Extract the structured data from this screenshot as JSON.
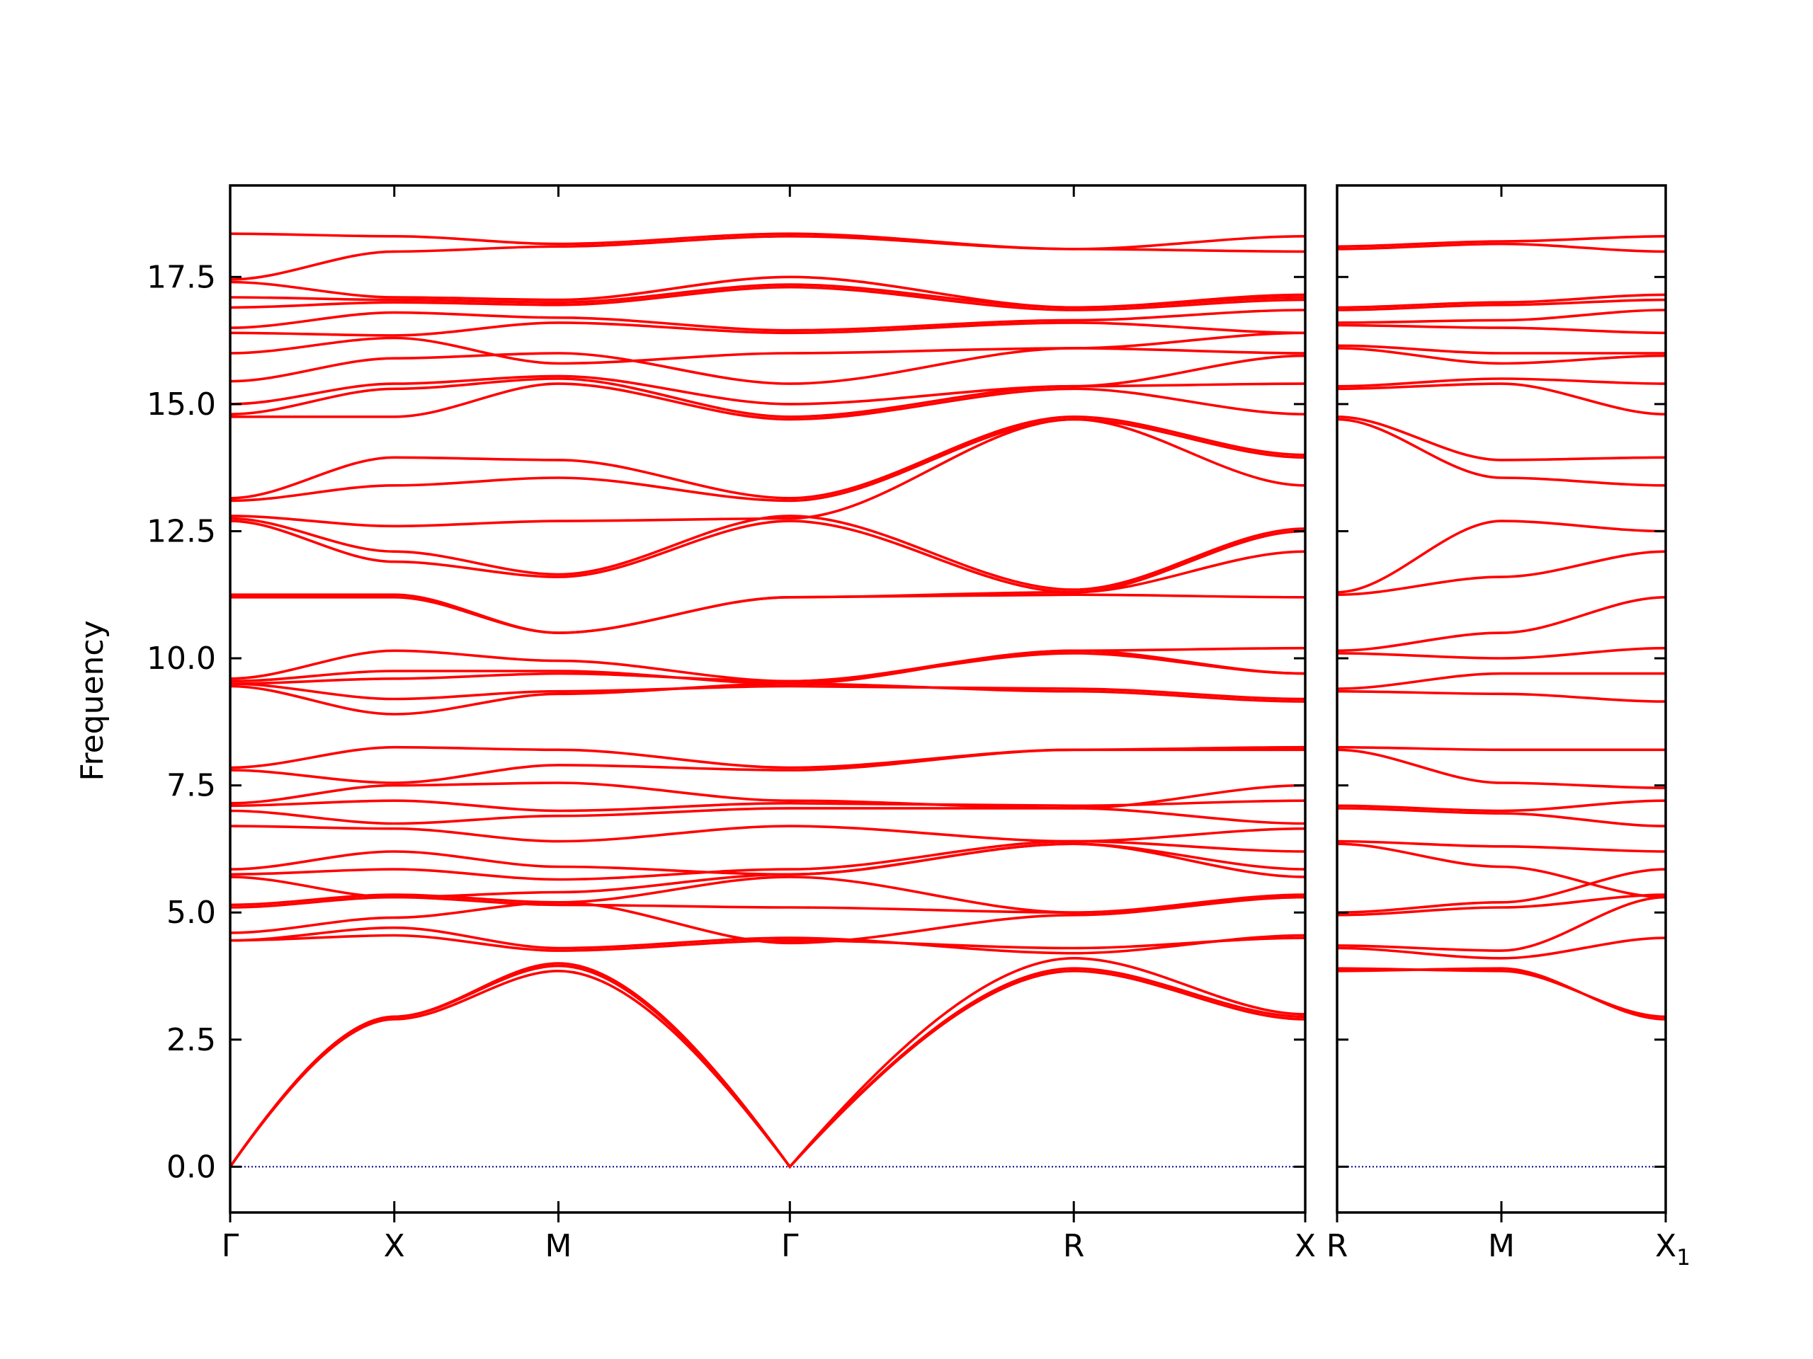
{
  "chart_data": {
    "type": "line",
    "ylabel": "Frequency",
    "ylim": [
      -0.9,
      19.3
    ],
    "yticks": [
      "0.0",
      "2.5",
      "5.0",
      "7.5",
      "10.0",
      "12.5",
      "15.0",
      "17.5"
    ],
    "band_color": "#ff0000",
    "zero_line_color": "#00008b",
    "panels": [
      {
        "name": "main",
        "path_labels": [
          "Γ",
          "X",
          "M",
          "Γ",
          "R",
          "X"
        ],
        "segment_lengths": [
          1.0,
          1.0,
          1.41,
          1.73,
          1.41
        ],
        "bands": [
          {
            "nodes": [
              0,
              2.95,
              3.95,
              0,
              3.85,
              2.9
            ],
            "shape": "acoustic"
          },
          {
            "nodes": [
              0,
              2.9,
              3.85,
              0,
              3.9,
              2.95
            ],
            "shape": "acoustic"
          },
          {
            "nodes": [
              0,
              2.95,
              4.0,
              0,
              4.1,
              3.0
            ],
            "shape": "acoustic"
          },
          {
            "nodes": [
              4.45,
              4.55,
              4.25,
              4.45,
              4.3,
              4.5
            ]
          },
          {
            "nodes": [
              4.45,
              4.7,
              4.3,
              4.5,
              4.2,
              4.55
            ]
          },
          {
            "nodes": [
              4.6,
              4.9,
              5.2,
              4.4,
              4.95,
              5.3
            ]
          },
          {
            "nodes": [
              5.1,
              5.3,
              5.15,
              5.1,
              5.0,
              5.35
            ]
          },
          {
            "nodes": [
              5.15,
              5.35,
              5.2,
              5.7,
              5.0,
              5.3
            ]
          },
          {
            "nodes": [
              5.7,
              5.3,
              5.4,
              5.75,
              6.35,
              5.85
            ]
          },
          {
            "nodes": [
              5.75,
              5.85,
              5.65,
              5.85,
              6.4,
              6.2
            ]
          },
          {
            "nodes": [
              5.85,
              6.2,
              5.9,
              5.75,
              6.35,
              5.7
            ]
          },
          {
            "nodes": [
              6.7,
              6.65,
              6.4,
              6.7,
              6.4,
              6.65
            ]
          },
          {
            "nodes": [
              7.0,
              6.75,
              6.9,
              7.05,
              7.05,
              6.75
            ]
          },
          {
            "nodes": [
              7.1,
              7.2,
              7.0,
              7.15,
              7.1,
              7.2
            ]
          },
          {
            "nodes": [
              7.15,
              7.5,
              7.55,
              7.2,
              7.05,
              7.5
            ]
          },
          {
            "nodes": [
              7.8,
              7.55,
              7.9,
              7.8,
              8.2,
              8.2
            ]
          },
          {
            "nodes": [
              7.85,
              8.25,
              8.2,
              7.85,
              8.2,
              8.25
            ]
          },
          {
            "nodes": [
              9.45,
              8.9,
              9.3,
              9.5,
              9.35,
              9.15
            ]
          },
          {
            "nodes": [
              9.5,
              9.2,
              9.35,
              9.45,
              9.4,
              9.2
            ]
          },
          {
            "nodes": [
              9.5,
              9.6,
              9.7,
              9.55,
              10.1,
              9.7
            ]
          },
          {
            "nodes": [
              9.55,
              9.75,
              9.75,
              9.5,
              10.15,
              9.7
            ]
          },
          {
            "nodes": [
              9.6,
              10.15,
              9.95,
              9.55,
              10.15,
              10.2
            ]
          },
          {
            "nodes": [
              11.2,
              11.2,
              10.5,
              11.2,
              11.25,
              11.2
            ]
          },
          {
            "nodes": [
              11.25,
              11.25,
              10.5,
              11.2,
              11.3,
              12.1
            ]
          },
          {
            "nodes": [
              12.7,
              11.9,
              11.6,
              12.7,
              11.3,
              12.5
            ]
          },
          {
            "nodes": [
              12.75,
              12.1,
              11.65,
              12.8,
              11.35,
              12.55
            ]
          },
          {
            "nodes": [
              12.8,
              12.6,
              12.7,
              12.75,
              14.7,
              13.4
            ]
          },
          {
            "nodes": [
              13.1,
              13.4,
              13.55,
              13.1,
              14.7,
              13.95
            ]
          },
          {
            "nodes": [
              13.15,
              13.95,
              13.9,
              13.15,
              14.75,
              14.0
            ]
          },
          {
            "nodes": [
              14.75,
              14.75,
              15.4,
              14.7,
              15.3,
              14.8
            ]
          },
          {
            "nodes": [
              14.8,
              15.3,
              15.5,
              14.75,
              15.35,
              15.4
            ]
          },
          {
            "nodes": [
              15.0,
              15.4,
              15.55,
              15.0,
              15.35,
              15.95
            ]
          },
          {
            "nodes": [
              15.45,
              15.9,
              16.0,
              15.4,
              16.1,
              16.0
            ]
          },
          {
            "nodes": [
              16.0,
              16.3,
              15.8,
              16.0,
              16.1,
              16.4
            ]
          },
          {
            "nodes": [
              16.4,
              16.35,
              16.6,
              16.4,
              16.6,
              16.4
            ]
          },
          {
            "nodes": [
              16.5,
              16.8,
              16.7,
              16.45,
              16.65,
              16.85
            ]
          },
          {
            "nodes": [
              16.9,
              17.0,
              16.95,
              17.3,
              16.85,
              17.05
            ]
          },
          {
            "nodes": [
              17.1,
              17.05,
              17.0,
              17.35,
              16.9,
              17.1
            ]
          },
          {
            "nodes": [
              17.4,
              17.1,
              17.05,
              17.5,
              16.9,
              17.15
            ]
          },
          {
            "nodes": [
              17.45,
              18.0,
              18.1,
              18.3,
              18.05,
              18.0
            ]
          },
          {
            "nodes": [
              18.35,
              18.3,
              18.15,
              18.35,
              18.05,
              18.3
            ]
          }
        ]
      },
      {
        "name": "right",
        "path_labels": [
          "R",
          "M",
          "X₁"
        ],
        "last_label_main": "X",
        "last_label_sub": "1",
        "segment_lengths": [
          1.0,
          1.0
        ],
        "bands": [
          {
            "nodes": [
              3.85,
              3.9,
              2.9
            ]
          },
          {
            "nodes": [
              3.9,
              3.85,
              2.95
            ]
          },
          {
            "nodes": [
              4.3,
              4.1,
              4.5
            ]
          },
          {
            "nodes": [
              4.35,
              4.25,
              5.3
            ]
          },
          {
            "nodes": [
              4.95,
              5.1,
              5.35
            ]
          },
          {
            "nodes": [
              5.0,
              5.2,
              5.85
            ]
          },
          {
            "nodes": [
              6.35,
              5.9,
              5.3
            ]
          },
          {
            "nodes": [
              6.4,
              6.3,
              6.2
            ]
          },
          {
            "nodes": [
              7.05,
              6.95,
              6.7
            ]
          },
          {
            "nodes": [
              7.1,
              7.0,
              7.2
            ]
          },
          {
            "nodes": [
              8.2,
              7.55,
              7.45
            ]
          },
          {
            "nodes": [
              8.25,
              8.2,
              8.2
            ]
          },
          {
            "nodes": [
              9.35,
              9.3,
              9.15
            ]
          },
          {
            "nodes": [
              9.4,
              9.7,
              9.7
            ]
          },
          {
            "nodes": [
              10.1,
              10.0,
              10.2
            ]
          },
          {
            "nodes": [
              10.15,
              10.5,
              11.2
            ]
          },
          {
            "nodes": [
              11.25,
              11.6,
              12.1
            ]
          },
          {
            "nodes": [
              11.3,
              12.7,
              12.5
            ]
          },
          {
            "nodes": [
              14.7,
              13.55,
              13.4
            ]
          },
          {
            "nodes": [
              14.75,
              13.9,
              13.95
            ]
          },
          {
            "nodes": [
              15.3,
              15.4,
              14.8
            ]
          },
          {
            "nodes": [
              15.35,
              15.5,
              15.4
            ]
          },
          {
            "nodes": [
              16.1,
              15.8,
              15.95
            ]
          },
          {
            "nodes": [
              16.15,
              16.0,
              16.0
            ]
          },
          {
            "nodes": [
              16.55,
              16.5,
              16.4
            ]
          },
          {
            "nodes": [
              16.6,
              16.65,
              16.85
            ]
          },
          {
            "nodes": [
              16.85,
              16.95,
              17.05
            ]
          },
          {
            "nodes": [
              16.9,
              17.0,
              17.15
            ]
          },
          {
            "nodes": [
              18.05,
              18.15,
              18.0
            ]
          },
          {
            "nodes": [
              18.1,
              18.2,
              18.3
            ]
          }
        ]
      }
    ]
  }
}
